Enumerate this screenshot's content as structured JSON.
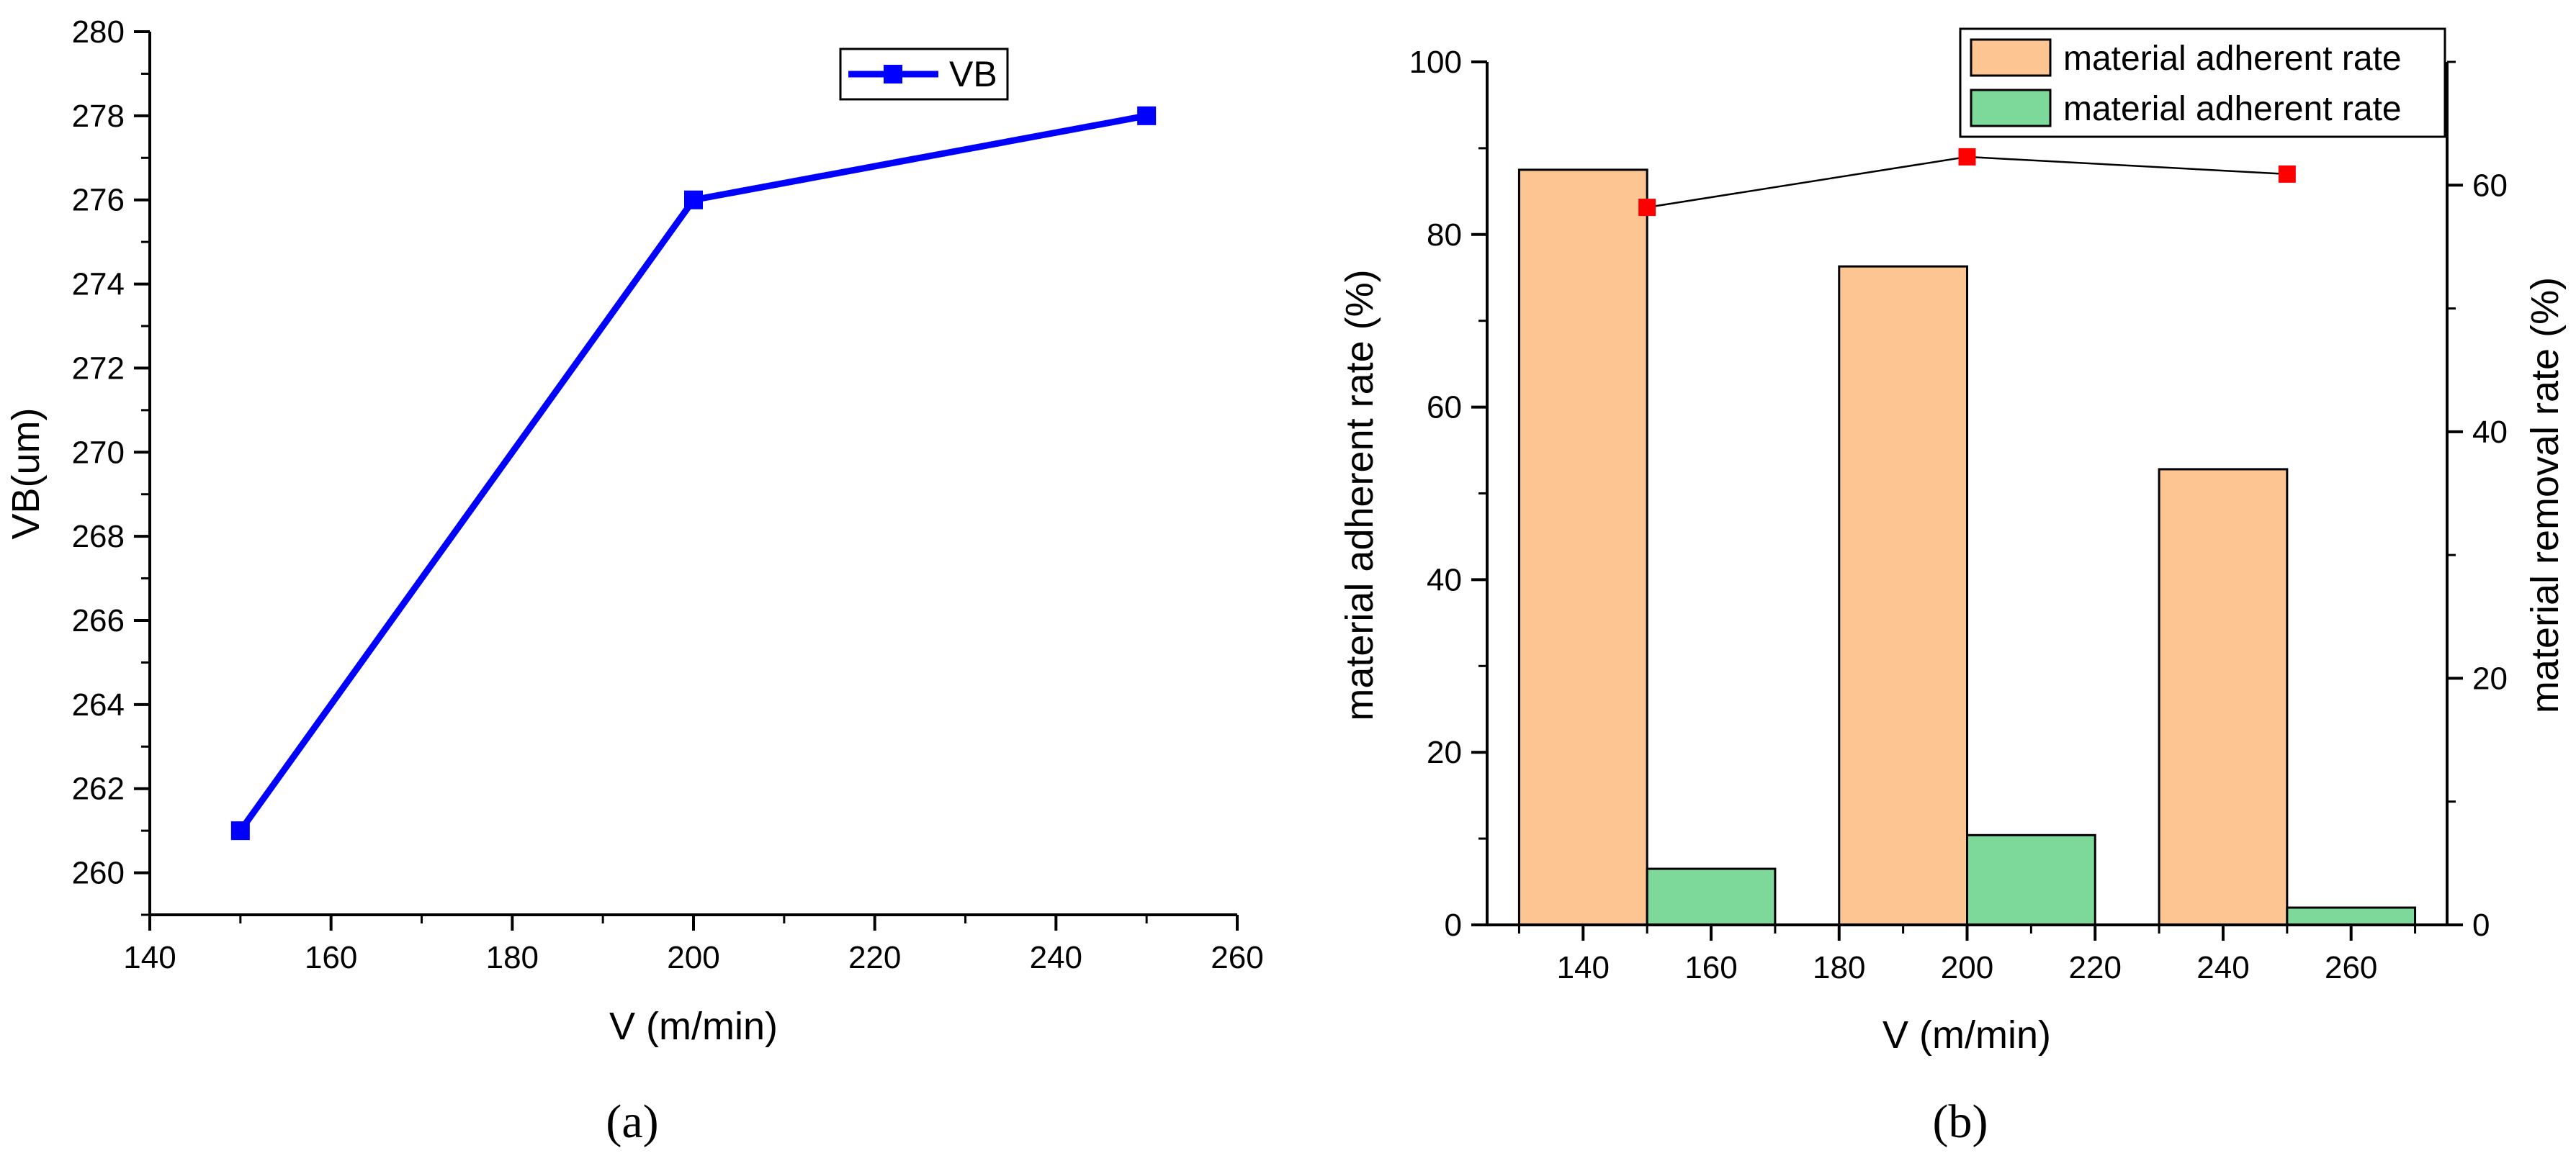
{
  "chart_data": [
    {
      "type": "line",
      "panel_label": "(a)",
      "x": [
        150,
        200,
        250
      ],
      "series": [
        {
          "name": "VB",
          "values": [
            261,
            276,
            278
          ],
          "color": "#0000ff"
        }
      ],
      "xlabel": "V (m/min)",
      "ylabel": "VB(um)",
      "xlim": [
        140,
        260
      ],
      "ylim": [
        259,
        280
      ],
      "xticks": [
        "140",
        "160",
        "180",
        "200",
        "220",
        "240",
        "260"
      ],
      "yticks": [
        "260",
        "262",
        "264",
        "266",
        "268",
        "270",
        "272",
        "274",
        "276",
        "278",
        "280"
      ],
      "legend": {
        "placement": "top-right",
        "entries": [
          "VB"
        ]
      }
    },
    {
      "type": "bar",
      "panel_label": "(b)",
      "xlabel": "V (m/min)",
      "ylabel": "material adherent rate (%)",
      "y2label": "material removal rate (%)",
      "xlim": [
        125,
        275
      ],
      "ylim": [
        0,
        100
      ],
      "y2lim": [
        0,
        70
      ],
      "xticks": [
        "140",
        "160",
        "180",
        "200",
        "220",
        "240",
        "260"
      ],
      "yticks": [
        "0",
        "20",
        "40",
        "60",
        "80",
        "100"
      ],
      "y2ticks": [
        "0",
        "20",
        "40",
        "60"
      ],
      "bars": [
        {
          "name": "material adherent rate",
          "color": "#fdc592",
          "x": [
            140,
            190,
            240
          ],
          "values": [
            87.5,
            76.3,
            52.8
          ]
        },
        {
          "name": "material adherent rate",
          "color": "#7dd99a",
          "x": [
            160,
            210,
            260
          ],
          "values": [
            6.5,
            10.4,
            2.0
          ]
        }
      ],
      "points": {
        "name": "material removal rate",
        "color": "#ff0000",
        "axis": "right",
        "x": [
          150,
          200,
          250
        ],
        "values": [
          58.2,
          62.3,
          60.9
        ]
      },
      "legend": {
        "placement": "top-right",
        "entries": [
          "material adherent rate",
          "material adherent rate"
        ]
      }
    }
  ]
}
